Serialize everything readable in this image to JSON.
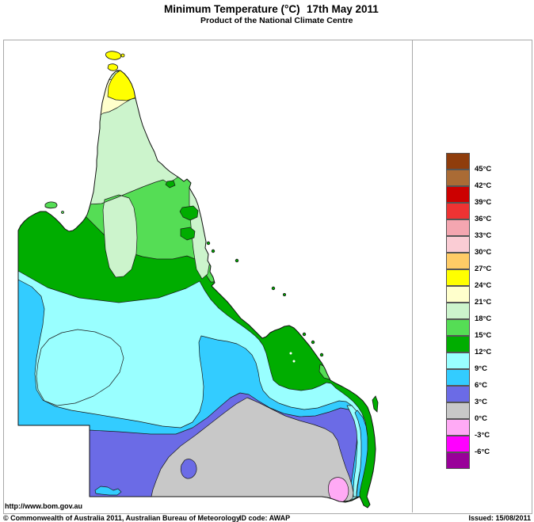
{
  "header": {
    "title": "Minimum Temperature (°C)",
    "date": "17th May 2011",
    "subtitle": "Product of the National Climate Centre"
  },
  "footer": {
    "url": "http://www.bom.gov.au",
    "copyright": "© Commonwealth of Australia 2011, Australian Bureau of Meteorology",
    "id_code": "ID code: AWAP",
    "issued": "Issued: 15/08/2011"
  },
  "legend": {
    "unit": "°C",
    "entries": [
      {
        "color": "#8F3D0C",
        "label": "45°C"
      },
      {
        "color": "#AA6B35",
        "label": "42°C"
      },
      {
        "color": "#CC0000",
        "label": "39°C"
      },
      {
        "color": "#EE3333",
        "label": "36°C"
      },
      {
        "color": "#F4A6B0",
        "label": "33°C"
      },
      {
        "color": "#FACCD4",
        "label": "30°C"
      },
      {
        "color": "#FFCC66",
        "label": "27°C"
      },
      {
        "color": "#FFFF00",
        "label": "24°C"
      },
      {
        "color": "#FFFFCC",
        "label": "21°C"
      },
      {
        "color": "#CCF4CC",
        "label": "18°C"
      },
      {
        "color": "#55DD55",
        "label": "15°C"
      },
      {
        "color": "#00AD00",
        "label": "12°C"
      },
      {
        "color": "#99FFFF",
        "label": "9°C"
      },
      {
        "color": "#33CCFF",
        "label": "6°C"
      },
      {
        "color": "#6B6BE6",
        "label": "3°C"
      },
      {
        "color": "#C8C8C8",
        "label": "0°C"
      },
      {
        "color": "#FFAAF5",
        "label": "-3°C"
      },
      {
        "color": "#FF00FF",
        "label": "-6°C"
      },
      {
        "color": "#990099",
        "label": ""
      }
    ]
  },
  "map": {
    "region": "Queensland, Australia",
    "bands_shown": [
      {
        "range": "24 to 27 °C",
        "color": "#FFFF00"
      },
      {
        "range": "21 to 24 °C",
        "color": "#FFFFCC"
      },
      {
        "range": "18 to 21 °C",
        "color": "#CCF4CC"
      },
      {
        "range": "15 to 18 °C",
        "color": "#55DD55"
      },
      {
        "range": "12 to 15 °C",
        "color": "#00AD00"
      },
      {
        "range": "9 to 12 °C",
        "color": "#99FFFF"
      },
      {
        "range": "6 to 9 °C",
        "color": "#33CCFF"
      },
      {
        "range": "3 to 6 °C",
        "color": "#6B6BE6"
      },
      {
        "range": "0 to 3 °C",
        "color": "#C8C8C8"
      },
      {
        "range": "-3 to 0 °C",
        "color": "#FFAAF5"
      }
    ]
  },
  "palette": {
    "c24": "#FFFF00",
    "c21": "#FFFFCC",
    "c18": "#CCF4CC",
    "c15": "#55DD55",
    "c12": "#00AD00",
    "c9": "#99FFFF",
    "c6": "#33CCFF",
    "c3": "#6B6BE6",
    "c0": "#C8C8C8",
    "cm3": "#FFAAF5",
    "sea": "#FFFFFF"
  }
}
